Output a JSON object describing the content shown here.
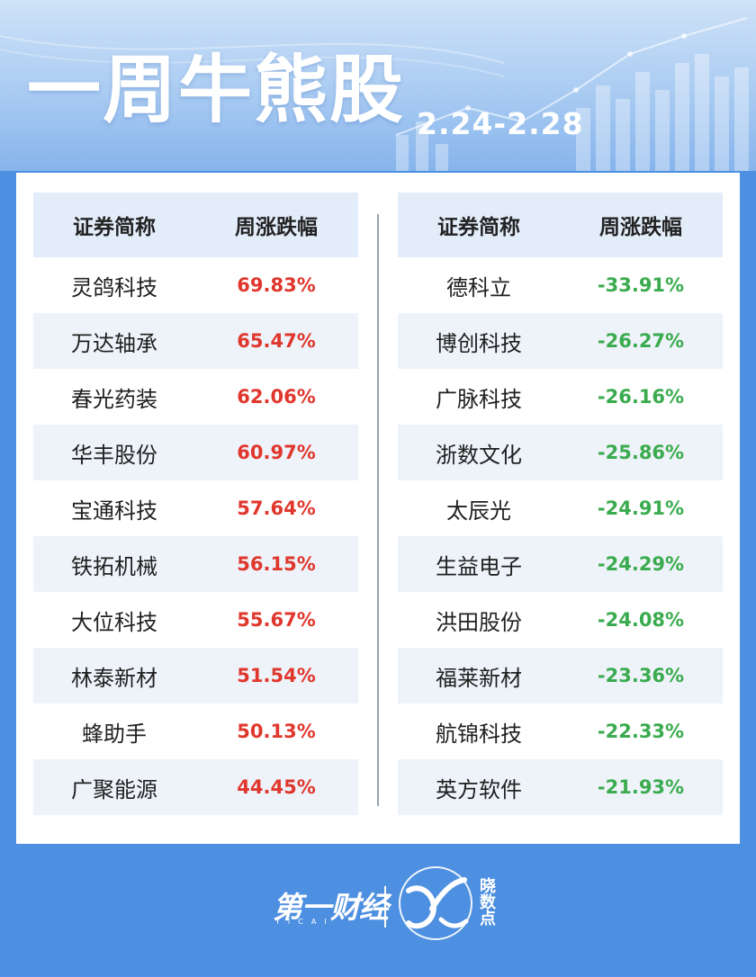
{
  "title": "一周牛熊股",
  "date_range": "2.24-2.28",
  "left_table": {
    "headers": [
      "证券简称",
      "周涨跌幅"
    ],
    "rows": [
      {
        "name": "灵鸽科技",
        "change": "69.83%"
      },
      {
        "name": "万达轴承",
        "change": "65.47%"
      },
      {
        "name": "春光药装",
        "change": "62.06%"
      },
      {
        "name": "华丰股份",
        "change": "60.97%"
      },
      {
        "name": "宝通科技",
        "change": "57.64%"
      },
      {
        "name": "铁拓机械",
        "change": "56.15%"
      },
      {
        "name": "大位科技",
        "change": "55.67%"
      },
      {
        "name": "林泰新材",
        "change": "51.54%"
      },
      {
        "name": "蜂助手",
        "change": "50.13%"
      },
      {
        "name": "广聚能源",
        "change": "44.45%"
      }
    ]
  },
  "right_table": {
    "headers": [
      "证券简称",
      "周涨跌幅"
    ],
    "rows": [
      {
        "name": "德科立",
        "change": "-33.91%"
      },
      {
        "name": "博创科技",
        "change": "-26.27%"
      },
      {
        "name": "广脉科技",
        "change": "-26.16%"
      },
      {
        "name": "浙数文化",
        "change": "-25.86%"
      },
      {
        "name": "太辰光",
        "change": "-24.91%"
      },
      {
        "name": "生益电子",
        "change": "-24.29%"
      },
      {
        "name": "洪田股份",
        "change": "-24.08%"
      },
      {
        "name": "福莱新材",
        "change": "-23.36%"
      },
      {
        "name": "航锦科技",
        "change": "-22.33%"
      },
      {
        "name": "英方软件",
        "change": "-21.93%"
      }
    ]
  },
  "footer": {
    "brand": "第一财经",
    "brand_sub": "YICAI",
    "logo_text": "晓数点",
    "logo_icon": "xiaoshudian-logo-icon"
  },
  "colors": {
    "background": "#4d8fe0",
    "up": "#e0372d",
    "down": "#3aab4e",
    "header_row": "#e3edfa"
  }
}
